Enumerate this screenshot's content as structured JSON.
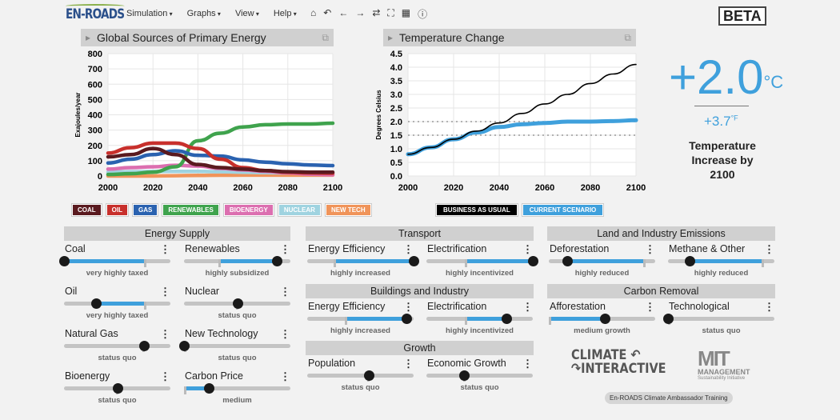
{
  "header": {
    "logo": "EN-ROADS",
    "menu": [
      "Simulation",
      "Graphs",
      "View",
      "Help"
    ],
    "tools": [
      "home-icon",
      "undo-icon",
      "back-icon",
      "forward-icon",
      "redo-icon",
      "fullscreen-icon",
      "table-icon",
      "info-icon"
    ],
    "beta": "BETA"
  },
  "graph1": {
    "title": "Global Sources of Primary Energy",
    "copy": "⧉"
  },
  "graph2": {
    "title": "Temperature Change",
    "copy": "⧉"
  },
  "chart_data": [
    {
      "type": "line",
      "title": "Global Sources of Primary Energy",
      "ylabel": "Exajoules/year",
      "xlabel": "",
      "ylim": [
        0,
        800
      ],
      "yticks": [
        0,
        100,
        200,
        300,
        400,
        500,
        600,
        700,
        800
      ],
      "xlim": [
        2000,
        2100
      ],
      "xticks": [
        2000,
        2020,
        2040,
        2060,
        2080,
        2100
      ],
      "grid": true,
      "legend": "bottom",
      "x": [
        2000,
        2010,
        2020,
        2030,
        2040,
        2050,
        2060,
        2070,
        2080,
        2090,
        2100
      ],
      "series": [
        {
          "name": "COAL",
          "color": "#5a1a1f",
          "values": [
            125,
            140,
            180,
            140,
            75,
            55,
            45,
            35,
            28,
            25,
            25
          ]
        },
        {
          "name": "OIL",
          "color": "#c8302c",
          "values": [
            150,
            185,
            215,
            215,
            180,
            110,
            55,
            35,
            25,
            20,
            18
          ]
        },
        {
          "name": "GAS",
          "color": "#2a62b0",
          "values": [
            85,
            110,
            140,
            165,
            135,
            130,
            105,
            90,
            80,
            72,
            68
          ]
        },
        {
          "name": "RENEWABLES",
          "color": "#3fa34d",
          "values": [
            10,
            15,
            25,
            60,
            230,
            280,
            320,
            335,
            340,
            340,
            345
          ]
        },
        {
          "name": "BIOENERGY",
          "color": "#dc6fb0",
          "values": [
            45,
            55,
            60,
            70,
            65,
            50,
            40,
            30,
            20,
            12,
            8
          ]
        },
        {
          "name": "NUCLEAR",
          "color": "#9fd3e0",
          "values": [
            25,
            28,
            30,
            30,
            30,
            28,
            25,
            22,
            20,
            18,
            15
          ]
        },
        {
          "name": "NEW TECH",
          "color": "#f0945a",
          "values": [
            0,
            0,
            0,
            2,
            4,
            5,
            6,
            6,
            6,
            6,
            6
          ]
        }
      ]
    },
    {
      "type": "line",
      "title": "Temperature Change",
      "ylabel": "Degrees Celsius",
      "xlabel": "",
      "ylim": [
        0,
        4.5
      ],
      "yticks": [
        0.0,
        0.5,
        1.0,
        1.5,
        2.0,
        2.5,
        3.0,
        3.5,
        4.0,
        4.5
      ],
      "xlim": [
        2000,
        2100
      ],
      "xticks": [
        2000,
        2020,
        2040,
        2060,
        2080,
        2100
      ],
      "grid": true,
      "legend": "bottom",
      "reference_lines": [
        1.5,
        2.0
      ],
      "x": [
        2000,
        2010,
        2020,
        2030,
        2040,
        2050,
        2060,
        2070,
        2080,
        2090,
        2100
      ],
      "series": [
        {
          "name": "BUSINESS AS USUAL",
          "color": "#000000",
          "values": [
            0.8,
            1.05,
            1.35,
            1.65,
            1.95,
            2.3,
            2.65,
            3.0,
            3.4,
            3.75,
            4.1
          ]
        },
        {
          "name": "CURRENT SCENARIO",
          "color": "#3fa0dc",
          "values": [
            0.8,
            1.05,
            1.35,
            1.6,
            1.8,
            1.9,
            1.95,
            2.0,
            2.0,
            2.02,
            2.05
          ]
        }
      ]
    }
  ],
  "result": {
    "celsius": "+2.0",
    "c_unit": "°C",
    "fahrenheit": "+3.7",
    "f_unit": "°F",
    "label": "Temperature Increase by 2100"
  },
  "sections": [
    {
      "title": "Energy Supply"
    },
    {
      "title": "Transport"
    },
    {
      "title": "Buildings and Industry"
    },
    {
      "title": "Growth"
    },
    {
      "title": "Land and Industry Emissions"
    },
    {
      "title": "Carbon Removal"
    }
  ],
  "sliders": [
    {
      "name": "Coal",
      "status": "very highly taxed",
      "value": 0.0,
      "reference": 0.77
    },
    {
      "name": "Renewables",
      "status": "highly subsidized",
      "value": 0.87,
      "reference": 0.33
    },
    {
      "name": "Oil",
      "status": "very highly taxed",
      "value": 0.3,
      "reference": 0.77
    },
    {
      "name": "Nuclear",
      "status": "status quo",
      "value": 0.5,
      "reference": 0.5
    },
    {
      "name": "Natural Gas",
      "status": "status quo",
      "value": 0.75,
      "reference": 0.75
    },
    {
      "name": "New Technology",
      "status": "status quo",
      "value": 0.0,
      "reference": 0.0
    },
    {
      "name": "Bioenergy",
      "status": "status quo",
      "value": 0.5,
      "reference": 0.5
    },
    {
      "name": "Carbon Price",
      "status": "medium",
      "value": 0.23,
      "reference": 0.0
    },
    {
      "name": "Energy Efficiency",
      "status": "highly increased",
      "value": 1.0,
      "reference": 0.25
    },
    {
      "name": "Electrification",
      "status": "highly incentivized",
      "value": 1.0,
      "reference": 0.37
    },
    {
      "name": "Energy Efficiency",
      "status": "highly increased",
      "value": 0.93,
      "reference": 0.36
    },
    {
      "name": "Electrification",
      "status": "highly incentivized",
      "value": 0.75,
      "reference": 0.37
    },
    {
      "name": "Population",
      "status": "status quo",
      "value": 0.58,
      "reference": 0.58
    },
    {
      "name": "Economic Growth",
      "status": "status quo",
      "value": 0.35,
      "reference": 0.35
    },
    {
      "name": "Deforestation",
      "status": "highly reduced",
      "value": 0.17,
      "reference": 0.91
    },
    {
      "name": "Methane & Other",
      "status": "highly reduced",
      "value": 0.2,
      "reference": 0.9
    },
    {
      "name": "Afforestation",
      "status": "medium growth",
      "value": 0.53,
      "reference": 0.0
    },
    {
      "name": "Technological",
      "status": "status quo",
      "value": 0.0,
      "reference": 0.0
    }
  ],
  "footer": {
    "ci_logo": "CLIMATE INTERACTIVE",
    "mit_logo": "MIT MANAGEMENT Sustainability Initiative",
    "training": "En-ROADS Climate Ambassador Training"
  }
}
